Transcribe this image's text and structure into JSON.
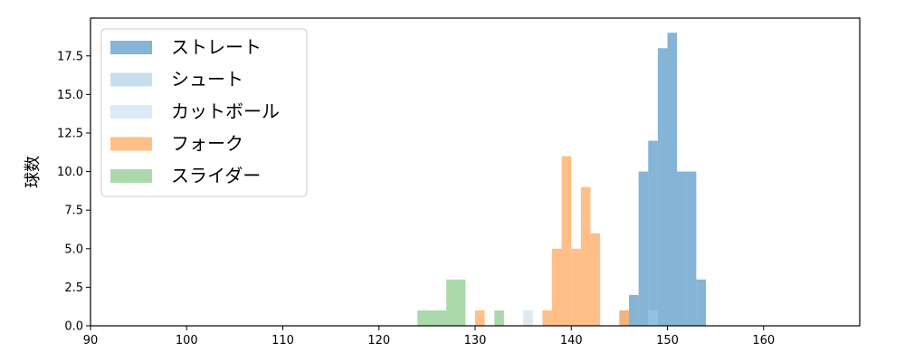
{
  "chart_data": {
    "type": "bar",
    "subtype": "histogram",
    "ylabel": "球数",
    "xlabel": "",
    "xlim": [
      90,
      170
    ],
    "ylim": [
      0,
      19.95
    ],
    "xticks": [
      90,
      100,
      110,
      120,
      130,
      140,
      150,
      160
    ],
    "yticks": [
      0.0,
      2.5,
      5.0,
      7.5,
      10.0,
      12.5,
      15.0,
      17.5
    ],
    "ytick_labels": [
      "0.0",
      "2.5",
      "5.0",
      "7.5",
      "10.0",
      "12.5",
      "15.0",
      "17.5"
    ],
    "bin_width": 1,
    "legend_position": "upper-left",
    "grid": false,
    "series": [
      {
        "name": "ストレート",
        "color": "#1f77b4",
        "alpha": 0.55,
        "bins": [
          [
            146,
            2
          ],
          [
            147,
            10
          ],
          [
            148,
            12
          ],
          [
            149,
            18
          ],
          [
            150,
            19
          ],
          [
            151,
            10
          ],
          [
            152,
            10
          ],
          [
            153,
            3
          ]
        ]
      },
      {
        "name": "シュート",
        "color": "#9ecae1",
        "alpha": 0.6,
        "bins": [
          [
            148,
            1
          ]
        ]
      },
      {
        "name": "カットボール",
        "color": "#c6dbef",
        "alpha": 0.6,
        "bins": [
          [
            135,
            1
          ],
          [
            145,
            1
          ]
        ]
      },
      {
        "name": "フォーク",
        "color": "#ff7f0e",
        "alpha": 0.5,
        "bins": [
          [
            130,
            1
          ],
          [
            137,
            1
          ],
          [
            138,
            5
          ],
          [
            139,
            11
          ],
          [
            140,
            5
          ],
          [
            141,
            9
          ],
          [
            142,
            6
          ],
          [
            145,
            1
          ]
        ]
      },
      {
        "name": "スライダー",
        "color": "#2ca02c",
        "alpha": 0.4,
        "bins": [
          [
            124,
            1
          ],
          [
            125,
            1
          ],
          [
            126,
            1
          ],
          [
            127,
            3
          ],
          [
            128,
            3
          ],
          [
            132,
            1
          ]
        ]
      }
    ]
  }
}
